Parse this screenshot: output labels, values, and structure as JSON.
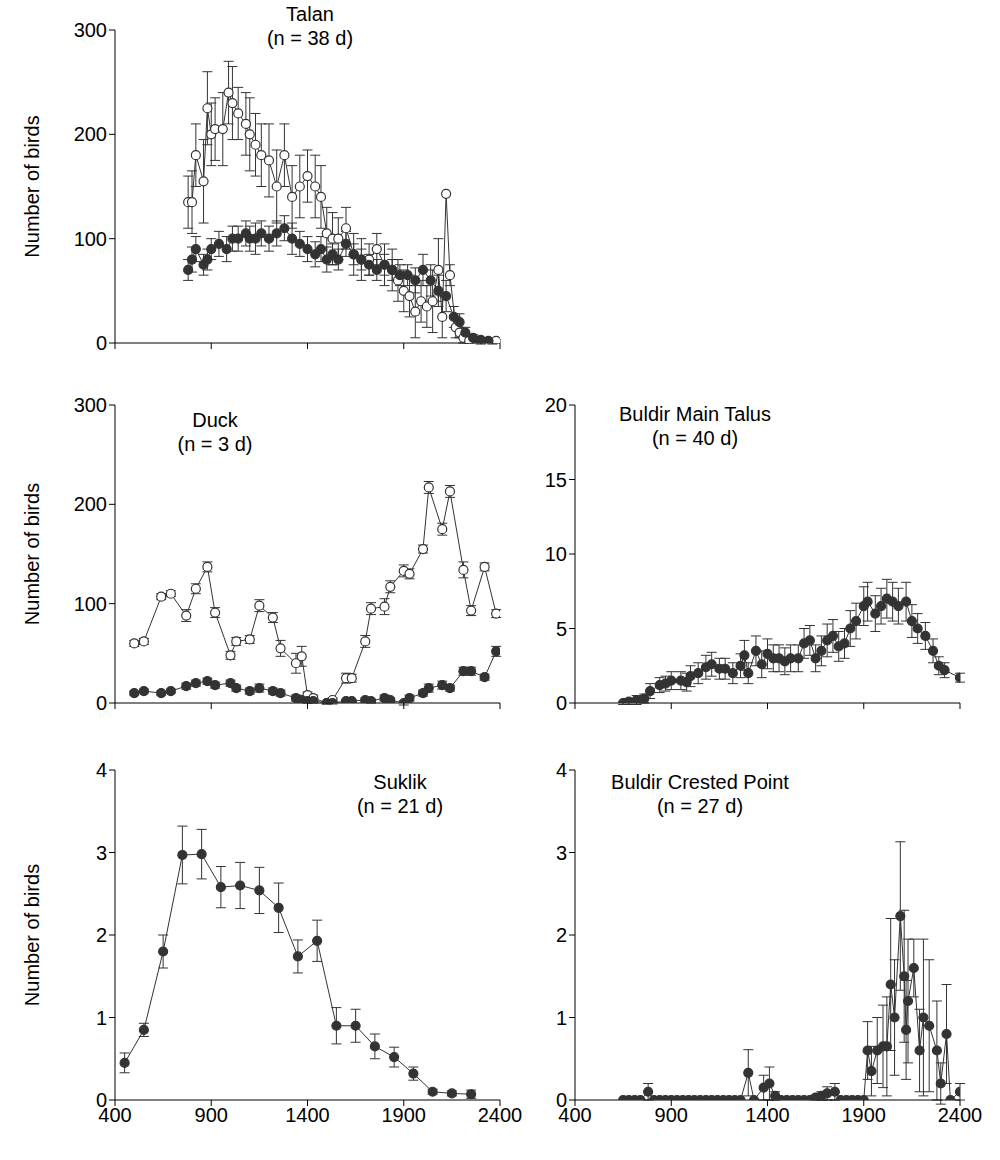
{
  "chart_data": [
    {
      "type": "line",
      "title": "Talan",
      "subtitle": "(n = 38 d)",
      "y_label": "Number of birds",
      "xlim": [
        400,
        2400
      ],
      "xticks": [
        400,
        900,
        1400,
        1900,
        2400
      ],
      "ylim": [
        0,
        300
      ],
      "yticks": [
        0,
        100,
        200,
        300
      ],
      "tick_labels": "y",
      "series": [
        {
          "color": "#ffffff",
          "marker": "open_circle",
          "x": [
            780,
            800,
            820,
            860,
            880,
            900,
            920,
            960,
            990,
            1010,
            1040,
            1080,
            1100,
            1130,
            1160,
            1200,
            1240,
            1280,
            1320,
            1360,
            1400,
            1440,
            1470,
            1500,
            1530,
            1560,
            1600,
            1640,
            1680,
            1720,
            1760,
            1800,
            1840,
            1870,
            1900,
            1930,
            1960,
            1990,
            2020,
            2050,
            2080,
            2100,
            2120,
            2140,
            2170,
            2190,
            2210,
            2240,
            2300,
            2360,
            2380
          ],
          "values": [
            135,
            135,
            180,
            155,
            225,
            200,
            205,
            205,
            240,
            230,
            220,
            210,
            200,
            190,
            180,
            175,
            150,
            180,
            140,
            150,
            160,
            150,
            140,
            105,
            100,
            100,
            110,
            85,
            80,
            80,
            90,
            75,
            70,
            60,
            50,
            45,
            30,
            40,
            35,
            40,
            70,
            25,
            143,
            65,
            15,
            10,
            5,
            2,
            0,
            0,
            2
          ],
          "errors": [
            25,
            30,
            30,
            40,
            35,
            30,
            30,
            35,
            30,
            35,
            25,
            30,
            35,
            30,
            30,
            35,
            35,
            30,
            30,
            30,
            25,
            30,
            30,
            25,
            25,
            20,
            20,
            20,
            20,
            15,
            15,
            20,
            20,
            20,
            20,
            20,
            25,
            20,
            20,
            30,
            30,
            20,
            0,
            10,
            10,
            5,
            5,
            2,
            1,
            1,
            1
          ]
        },
        {
          "color": "#333333",
          "marker": "circle",
          "x": [
            780,
            800,
            820,
            860,
            880,
            900,
            940,
            980,
            1010,
            1040,
            1080,
            1100,
            1130,
            1160,
            1200,
            1240,
            1280,
            1320,
            1360,
            1400,
            1440,
            1470,
            1500,
            1530,
            1560,
            1600,
            1640,
            1680,
            1720,
            1760,
            1800,
            1840,
            1880,
            1920,
            1960,
            2000,
            2040,
            2080,
            2120,
            2160,
            2190,
            2220,
            2260,
            2300,
            2340
          ],
          "values": [
            70,
            80,
            90,
            75,
            80,
            90,
            95,
            90,
            100,
            100,
            105,
            100,
            100,
            105,
            100,
            105,
            110,
            100,
            95,
            90,
            85,
            90,
            80,
            85,
            80,
            95,
            85,
            80,
            75,
            70,
            75,
            70,
            65,
            65,
            60,
            70,
            60,
            50,
            45,
            25,
            20,
            10,
            5,
            3,
            2
          ],
          "errors": [
            10,
            12,
            12,
            10,
            10,
            10,
            12,
            12,
            12,
            12,
            12,
            12,
            15,
            12,
            12,
            12,
            12,
            15,
            12,
            12,
            12,
            12,
            12,
            10,
            10,
            12,
            10,
            10,
            10,
            10,
            10,
            10,
            10,
            10,
            12,
            15,
            15,
            15,
            15,
            10,
            8,
            5,
            3,
            2,
            1
          ]
        }
      ]
    },
    {
      "type": "line",
      "title": "Duck",
      "subtitle": "(n = 3 d)",
      "y_label": "Number of birds",
      "xlim": [
        400,
        2400
      ],
      "xticks": [
        400,
        900,
        1400,
        1900,
        2400
      ],
      "ylim": [
        0,
        300
      ],
      "yticks": [
        0,
        100,
        200,
        300
      ],
      "tick_labels": "y",
      "series": [
        {
          "color": "#ffffff",
          "marker": "open_circle",
          "x": [
            500,
            550,
            640,
            690,
            770,
            820,
            880,
            920,
            1000,
            1030,
            1100,
            1150,
            1220,
            1260,
            1340,
            1370,
            1400,
            1430,
            1500,
            1530,
            1600,
            1630,
            1700,
            1730,
            1800,
            1830,
            1900,
            1930,
            2000,
            2030,
            2100,
            2140,
            2210,
            2250,
            2320,
            2380
          ],
          "values": [
            60,
            62,
            107,
            110,
            88,
            115,
            137,
            91,
            48,
            62,
            64,
            98,
            86,
            55,
            40,
            47,
            8,
            5,
            0,
            3,
            25,
            25,
            62,
            95,
            97,
            117,
            133,
            130,
            155,
            217,
            175,
            213,
            134,
            93,
            137,
            90
          ],
          "errors": [
            3,
            3,
            3,
            3,
            6,
            5,
            5,
            5,
            4,
            4,
            4,
            6,
            5,
            8,
            10,
            10,
            3,
            3,
            1,
            2,
            5,
            4,
            6,
            6,
            8,
            6,
            6,
            5,
            4,
            6,
            6,
            6,
            8,
            5,
            4,
            4
          ]
        },
        {
          "color": "#333333",
          "marker": "circle",
          "x": [
            500,
            550,
            640,
            690,
            770,
            820,
            880,
            920,
            1000,
            1030,
            1100,
            1150,
            1220,
            1260,
            1340,
            1370,
            1400,
            1430,
            1500,
            1530,
            1600,
            1630,
            1700,
            1730,
            1800,
            1830,
            1900,
            1930,
            2000,
            2030,
            2100,
            2140,
            2210,
            2250,
            2320,
            2380
          ],
          "values": [
            10,
            12,
            10,
            12,
            17,
            20,
            22,
            18,
            20,
            15,
            12,
            15,
            12,
            10,
            5,
            3,
            2,
            2,
            0,
            0,
            2,
            2,
            3,
            2,
            5,
            3,
            0,
            5,
            10,
            15,
            18,
            15,
            32,
            32,
            26,
            52
          ],
          "errors": [
            2,
            2,
            2,
            2,
            3,
            3,
            3,
            3,
            3,
            3,
            3,
            4,
            3,
            3,
            3,
            2,
            2,
            2,
            1,
            1,
            1,
            1,
            2,
            2,
            3,
            2,
            2,
            3,
            3,
            4,
            4,
            3,
            4,
            4,
            3,
            5
          ]
        }
      ]
    },
    {
      "type": "line",
      "title": "Buldir Main Talus",
      "subtitle": "(n = 40 d)",
      "xlim": [
        400,
        2400
      ],
      "xticks": [
        400,
        900,
        1400,
        1900,
        2400
      ],
      "ylim": [
        0,
        20
      ],
      "yticks": [
        0,
        5,
        10,
        15,
        20
      ],
      "tick_labels": "y",
      "series": [
        {
          "color": "#333333",
          "marker": "circle",
          "x": [
            650,
            680,
            720,
            760,
            790,
            840,
            870,
            900,
            950,
            980,
            1000,
            1040,
            1080,
            1110,
            1150,
            1180,
            1220,
            1260,
            1280,
            1300,
            1340,
            1370,
            1400,
            1430,
            1460,
            1490,
            1520,
            1560,
            1590,
            1620,
            1650,
            1680,
            1710,
            1740,
            1770,
            1800,
            1830,
            1860,
            1900,
            1920,
            1960,
            1990,
            2020,
            2050,
            2080,
            2120,
            2150,
            2180,
            2220,
            2260,
            2290,
            2320,
            2400
          ],
          "values": [
            0,
            0.1,
            0.2,
            0.3,
            0.8,
            1.2,
            1.3,
            1.5,
            1.5,
            1.4,
            1.8,
            2.0,
            2.4,
            2.6,
            2.3,
            2.3,
            2.0,
            2.5,
            3.2,
            2.0,
            3.5,
            2.6,
            3.3,
            3.0,
            3.0,
            2.8,
            3.0,
            3.0,
            4.0,
            4.2,
            3.0,
            3.5,
            4.2,
            4.5,
            3.8,
            4.0,
            5.0,
            5.5,
            6.5,
            6.8,
            6.0,
            6.5,
            7.0,
            6.8,
            6.5,
            6.8,
            5.5,
            5.0,
            4.5,
            3.5,
            2.5,
            2.2,
            1.7
          ],
          "errors": [
            0.1,
            0.2,
            0.3,
            0.3,
            0.5,
            0.5,
            0.5,
            0.6,
            0.6,
            0.6,
            0.7,
            0.7,
            0.8,
            0.8,
            0.7,
            0.7,
            0.7,
            0.8,
            1.0,
            0.7,
            1.0,
            0.9,
            1.0,
            0.9,
            0.9,
            0.9,
            0.9,
            0.9,
            1.0,
            1.0,
            0.9,
            1.0,
            1.1,
            1.1,
            1.0,
            1.0,
            1.2,
            1.2,
            1.3,
            1.3,
            1.2,
            1.2,
            1.3,
            1.3,
            1.2,
            1.3,
            1.1,
            1.0,
            0.9,
            0.8,
            0.6,
            0.5,
            0.3
          ]
        }
      ]
    },
    {
      "type": "line",
      "title": "Suklik",
      "subtitle": "(n = 21 d)",
      "y_label": "Number of birds",
      "xlim": [
        400,
        2400
      ],
      "xticks": [
        400,
        900,
        1400,
        1900,
        2400
      ],
      "ylim": [
        0,
        4
      ],
      "yticks": [
        0,
        1,
        2,
        3,
        4
      ],
      "series": [
        {
          "color": "#333333",
          "marker": "circle",
          "x": [
            450,
            550,
            650,
            750,
            850,
            950,
            1050,
            1150,
            1250,
            1350,
            1450,
            1550,
            1650,
            1750,
            1850,
            1950,
            2050,
            2150,
            2250
          ],
          "values": [
            0.45,
            0.85,
            1.8,
            2.97,
            2.98,
            2.58,
            2.6,
            2.54,
            2.33,
            1.74,
            1.93,
            0.9,
            0.9,
            0.65,
            0.52,
            0.32,
            0.1,
            0.08,
            0.07
          ],
          "errors": [
            0.12,
            0.08,
            0.2,
            0.35,
            0.3,
            0.25,
            0.28,
            0.28,
            0.3,
            0.2,
            0.25,
            0.22,
            0.2,
            0.15,
            0.12,
            0.08,
            0.03,
            0.03,
            0.05
          ]
        }
      ]
    },
    {
      "type": "line",
      "title": "Buldir Crested Point",
      "subtitle": "(n = 27 d)",
      "xlim": [
        400,
        2400
      ],
      "xticks": [
        400,
        900,
        1400,
        1900,
        2400
      ],
      "ylim": [
        0,
        4
      ],
      "yticks": [
        0,
        1,
        2,
        3,
        4
      ],
      "series": [
        {
          "color": "#333333",
          "marker": "circle",
          "x": [
            650,
            680,
            710,
            740,
            780,
            810,
            840,
            870,
            900,
            930,
            960,
            990,
            1020,
            1050,
            1080,
            1110,
            1140,
            1170,
            1200,
            1230,
            1260,
            1300,
            1330,
            1380,
            1410,
            1440,
            1470,
            1500,
            1530,
            1560,
            1590,
            1620,
            1650,
            1680,
            1710,
            1750,
            1780,
            1810,
            1840,
            1870,
            1900,
            1920,
            1940,
            1970,
            2000,
            2020,
            2040,
            2060,
            2090,
            2110,
            2120,
            2130,
            2160,
            2190,
            2210,
            2240,
            2280,
            2300,
            2330,
            2350,
            2400
          ],
          "values": [
            0,
            0,
            0,
            0,
            0.1,
            0,
            0,
            0,
            0,
            0,
            0,
            0,
            0,
            0,
            0,
            0,
            0,
            0,
            0,
            0,
            0,
            0.33,
            0,
            0.15,
            0.2,
            0.05,
            0,
            0,
            0,
            0,
            0,
            0,
            0.03,
            0.05,
            0.08,
            0.1,
            0,
            0,
            0,
            0,
            0,
            0.6,
            0.35,
            0.6,
            0.65,
            0.65,
            1.4,
            1.0,
            2.23,
            1.5,
            0.85,
            1.2,
            1.6,
            0.6,
            1.0,
            0.9,
            0.6,
            0.2,
            0.8,
            0,
            0.1
          ],
          "errors": [
            0,
            0,
            0,
            0,
            0.1,
            0,
            0,
            0,
            0,
            0,
            0,
            0,
            0,
            0,
            0,
            0,
            0,
            0,
            0,
            0,
            0,
            0.28,
            0,
            0.15,
            0.2,
            0.05,
            0,
            0,
            0,
            0,
            0,
            0,
            0.03,
            0.05,
            0.08,
            0.1,
            0,
            0,
            0,
            0,
            0,
            0.35,
            0.3,
            0.4,
            0.5,
            0.6,
            0.8,
            0.7,
            0.9,
            0.8,
            0.6,
            0.75,
            0.35,
            0.5,
            0.95,
            0.8,
            0.6,
            0.25,
            0.6,
            0,
            0.1
          ]
        }
      ]
    }
  ]
}
